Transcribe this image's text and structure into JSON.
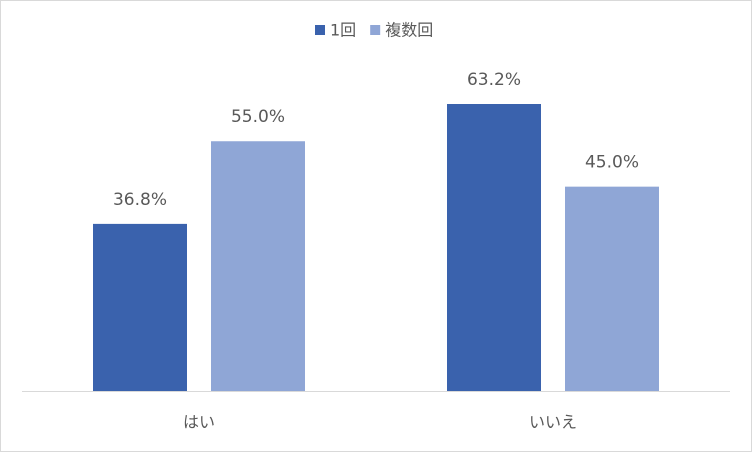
{
  "chart_data": {
    "type": "bar",
    "categories": [
      "はい",
      "いいえ"
    ],
    "series": [
      {
        "name": "1回",
        "color": "#3a62ad",
        "values": [
          36.8,
          63.2
        ],
        "value_labels": [
          "36.8%",
          "63.2%"
        ]
      },
      {
        "name": "複数回",
        "color": "#8fa6d6",
        "values": [
          55.0,
          45.0
        ],
        "value_labels": [
          "55.0%",
          "45.0%"
        ]
      }
    ],
    "legend": "top"
  }
}
